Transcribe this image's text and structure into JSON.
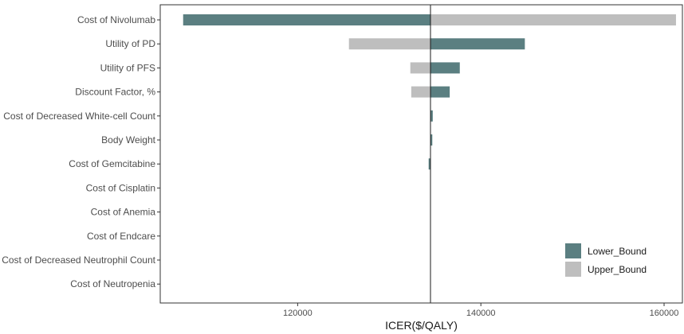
{
  "chart_data": {
    "type": "bar",
    "subtype": "tornado",
    "title": "",
    "xlabel": "ICER($/QALY)",
    "ylabel": "",
    "xlim": [
      105000,
      162000
    ],
    "base_value": 134500,
    "x_ticks": [
      120000,
      140000,
      160000
    ],
    "categories": [
      "Cost of Nivolumab",
      "Utility of PD",
      "Utility of PFS",
      "Discount Factor, %",
      "Cost of Decreased White-cell Count",
      "Body Weight",
      "Cost of Gemcitabine",
      "Cost of Cisplatin",
      "Cost of Anemia",
      "Cost of Endcare",
      "Cost of Decreased Neutrophil Count",
      "Cost of Neutropenia"
    ],
    "series": [
      {
        "name": "Lower_Bound",
        "color": "#5b7f81",
        "values": [
          107500,
          144800,
          137700,
          136600,
          134750,
          134700,
          134300,
          134500,
          134500,
          134500,
          134500,
          134500
        ]
      },
      {
        "name": "Upper_Bound",
        "color": "#bebebe",
        "values": [
          161300,
          125600,
          132300,
          132400,
          134500,
          134500,
          134500,
          134500,
          134500,
          134500,
          134500,
          134500
        ]
      }
    ],
    "legend_position": "bottom-right",
    "grid": false
  }
}
